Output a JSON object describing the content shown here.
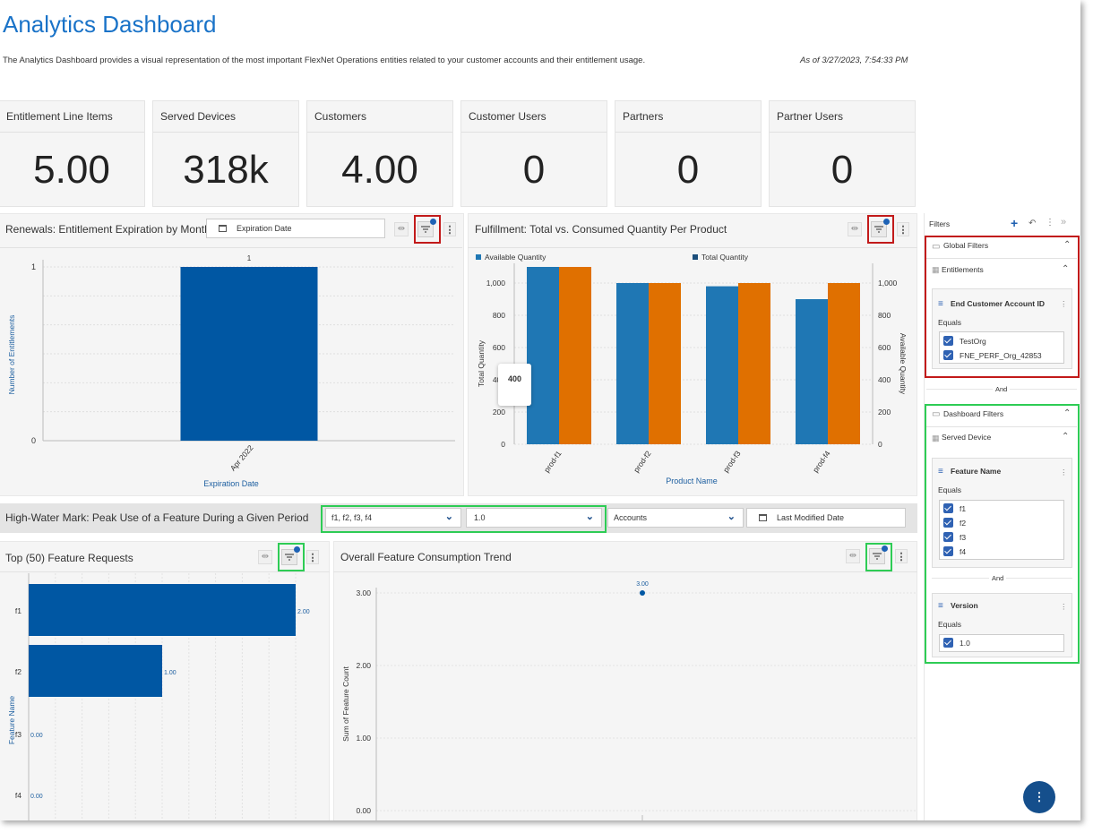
{
  "header": {
    "title": "Analytics Dashboard",
    "description": "The Analytics Dashboard provides a visual representation of the most important FlexNet Operations entities related to your customer accounts and their entitlement usage.",
    "as_of": "As of 3/27/2023, 7:54:33 PM"
  },
  "kpis": [
    {
      "label": "Entitlement Line Items",
      "value": "5.00"
    },
    {
      "label": "Served Devices",
      "value": "318k"
    },
    {
      "label": "Customers",
      "value": "4.00"
    },
    {
      "label": "Customer Users",
      "value": "0"
    },
    {
      "label": "Partners",
      "value": "0"
    },
    {
      "label": "Partner Users",
      "value": "0"
    }
  ],
  "renewals": {
    "title": "Renewals: Entitlement Expiration by Month",
    "date_placeholder": "Expiration Date",
    "chart_data": {
      "type": "bar",
      "categories": [
        "Apr 2022"
      ],
      "values": [
        1
      ],
      "data_labels": [
        "1"
      ],
      "xlabel": "Expiration Date",
      "ylabel": "Number of Entitlements",
      "ylim": [
        0,
        1
      ],
      "yticks": [
        "0",
        "1"
      ],
      "color": "#0057a3"
    }
  },
  "fulfillment": {
    "title": "Fulfillment: Total vs. Consumed Quantity Per Product",
    "tooltip": "400",
    "chart_data": {
      "type": "bar",
      "categories": [
        "prod-f1",
        "prod-f2",
        "prod-f3",
        "prod-f4"
      ],
      "series": [
        {
          "name": "Available Quantity",
          "color": "#1f77b4",
          "values": [
            1100,
            1000,
            980,
            900
          ]
        },
        {
          "name": "Total Quantity",
          "color": "#e07000",
          "values": [
            1100,
            1000,
            1000,
            1000
          ]
        }
      ],
      "legend_colors": [
        "#1f77b4",
        "#1c4f7c"
      ],
      "xlabel": "Product Name",
      "ylabel": "Total Quantity",
      "y2label": "Available Quantity",
      "ylim": [
        0,
        1100
      ],
      "yticks": [
        "0",
        "200",
        "400",
        "600",
        "800",
        "1,000"
      ],
      "y2ticks": [
        "0",
        "200",
        "400",
        "600",
        "800",
        "1,000"
      ]
    }
  },
  "hwm": {
    "title": "High-Water Mark: Peak Use of a Feature During a Given Period",
    "features_select": "f1, f2, f3, f4",
    "version_select": "1.0",
    "accounts_select": "Accounts",
    "date_placeholder": "Last Modified Date"
  },
  "top_features": {
    "title": "Top (50) Feature Requests",
    "chart_data": {
      "type": "bar",
      "orientation": "horizontal",
      "categories": [
        "f1",
        "f2",
        "f3",
        "f4"
      ],
      "values": [
        2,
        1,
        0,
        0
      ],
      "data_labels": [
        "2.00",
        "1.00",
        "0.00",
        "0.00"
      ],
      "ylabel": "Feature Name",
      "color": "#0057a3"
    }
  },
  "trend": {
    "title": "Overall Feature Consumption Trend",
    "chart_data": {
      "type": "scatter",
      "points": [
        {
          "y": 3
        }
      ],
      "data_labels": [
        "3.00"
      ],
      "ylabel": "Sum of Feature Count",
      "yticks": [
        "0.00",
        "1.00",
        "2.00",
        "3.00"
      ],
      "ylim": [
        0,
        3
      ],
      "color": "#0057a3"
    }
  },
  "filters": {
    "title": "Filters",
    "global": "Global Filters",
    "entitlements": "Entitlements",
    "end_customer": {
      "title": "End Customer Account ID",
      "op": "Equals",
      "values": [
        "TestOrg",
        "FNE_PERF_Org_42853"
      ]
    },
    "and1": "And",
    "dashboard": "Dashboard Filters",
    "served_device": "Served Device",
    "feature_name": {
      "title": "Feature Name",
      "op": "Equals",
      "values": [
        "f1",
        "f2",
        "f3",
        "f4"
      ]
    },
    "and2": "And",
    "version": {
      "title": "Version",
      "op": "Equals",
      "values": [
        "1.0"
      ]
    }
  },
  "colors": {
    "accent": "#1a73c8",
    "bar": "#0057a3",
    "red_highlight": "#c21a1a",
    "green_highlight": "#2ecc55"
  }
}
